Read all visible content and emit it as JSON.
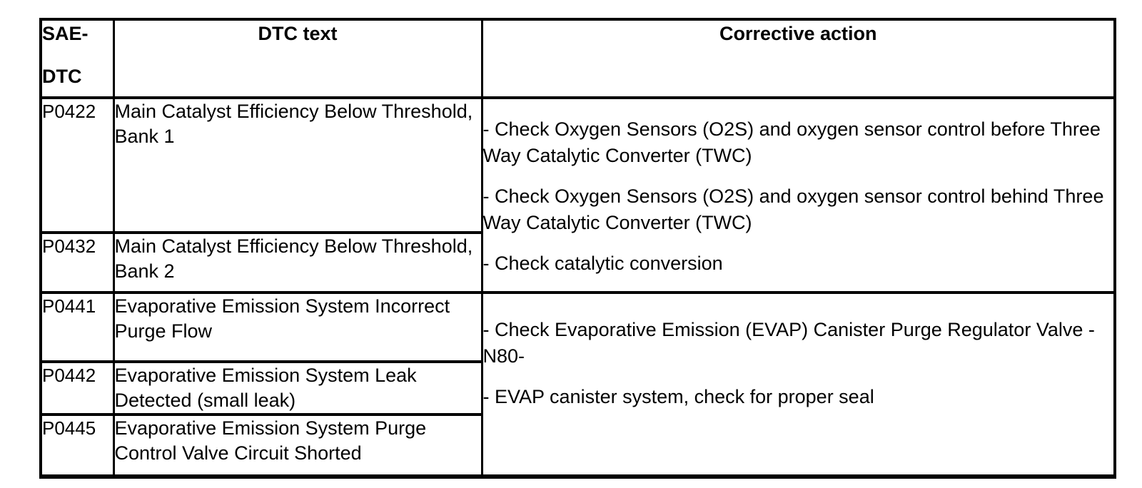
{
  "colors": {
    "background": "#ffffff",
    "text": "#000000",
    "border": "#000000"
  },
  "table": {
    "header": {
      "col1_line1": "SAE-",
      "col1_line2": "DTC",
      "col2": "DTC text",
      "col3": "Corrective action"
    },
    "groups": [
      {
        "rows": [
          {
            "code": "P0422",
            "text": "Main Catalyst Efficiency Below Threshold, Bank 1"
          },
          {
            "code": "P0432",
            "text": "Main Catalyst Efficiency Below Threshold, Bank 2"
          }
        ],
        "actions": [
          "- Check Oxygen Sensors (O2S) and oxygen sensor control before Three Way Catalytic Converter (TWC)",
          "- Check Oxygen Sensors (O2S) and oxygen sensor control behind Three Way Catalytic Converter (TWC)",
          "- Check catalytic conversion"
        ]
      },
      {
        "rows": [
          {
            "code": "P0441",
            "text": "Evaporative Emission System Incorrect Purge Flow"
          },
          {
            "code": "P0442",
            "text": "Evaporative Emission System Leak Detected (small leak)"
          },
          {
            "code": "P0445",
            "text": "Evaporative Emission System Purge Control Valve Circuit Shorted"
          }
        ],
        "actions": [
          "- Check Evaporative Emission (EVAP) Canister Purge Regulator Valve -N80-",
          "- EVAP canister system, check for proper seal"
        ]
      }
    ]
  }
}
